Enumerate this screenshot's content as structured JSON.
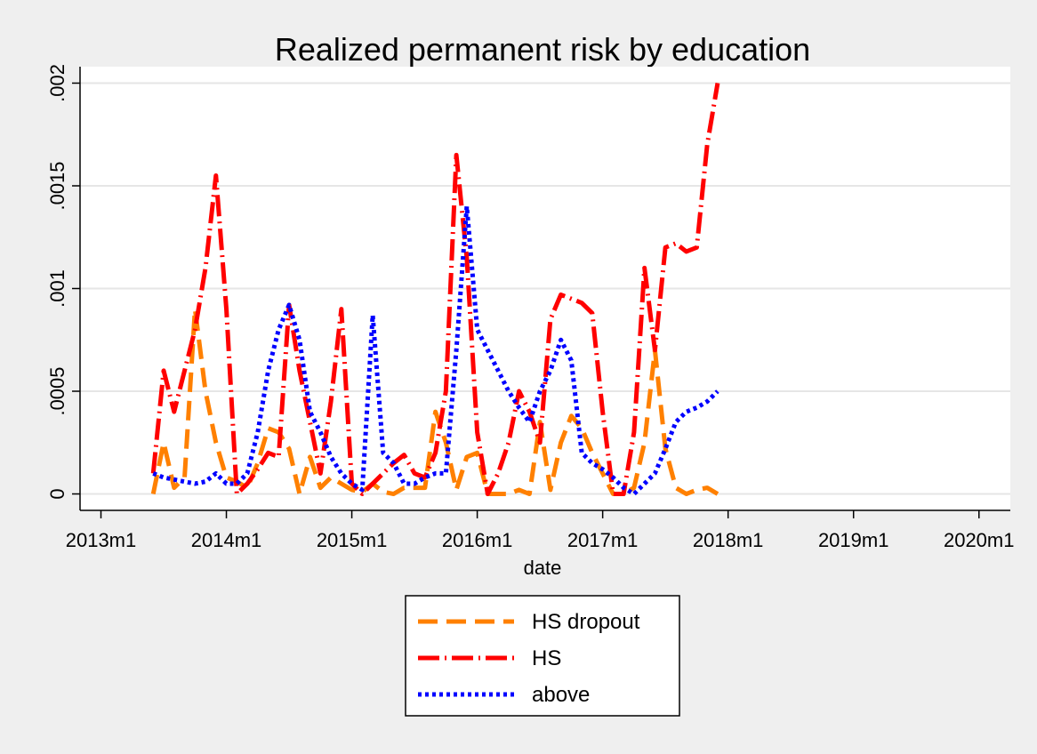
{
  "chart_data": {
    "type": "line",
    "title": "Realized permanent risk by education",
    "xlabel": "date",
    "ylabel": "",
    "xlim": [
      "2012m11",
      "2020m4"
    ],
    "ylim": [
      -8e-05,
      0.00208
    ],
    "x_ticks": [
      "2013m1",
      "2014m1",
      "2015m1",
      "2016m1",
      "2017m1",
      "2018m1",
      "2019m1",
      "2020m1"
    ],
    "y_ticks": [
      {
        "value": 0,
        "label": "0"
      },
      {
        "value": 0.0005,
        "label": ".0005"
      },
      {
        "value": 0.001,
        "label": ".001"
      },
      {
        "value": 0.0015,
        "label": ".0015"
      },
      {
        "value": 0.002,
        "label": ".002"
      }
    ],
    "grid": true,
    "legend_position": "bottom",
    "series": [
      {
        "name": "HS dropout",
        "color": "#ff8000",
        "style": "dash",
        "points": [
          [
            "2013m6",
            0.0
          ],
          [
            "2013m7",
            0.00025
          ],
          [
            "2013m8",
            3e-05
          ],
          [
            "2013m9",
            8e-05
          ],
          [
            "2013m10",
            0.0009
          ],
          [
            "2013m11",
            0.0005
          ],
          [
            "2013m12",
            0.00025
          ],
          [
            "2014m1",
            8e-05
          ],
          [
            "2014m2",
            6e-05
          ],
          [
            "2014m3",
            3e-05
          ],
          [
            "2014m4",
            0.00015
          ],
          [
            "2014m5",
            0.00032
          ],
          [
            "2014m6",
            0.0003
          ],
          [
            "2014m7",
            0.00022
          ],
          [
            "2014m8",
            0.0
          ],
          [
            "2014m9",
            0.00018
          ],
          [
            "2014m10",
            3e-05
          ],
          [
            "2014m11",
            8e-05
          ],
          [
            "2014m12",
            5e-05
          ],
          [
            "2015m1",
            2e-05
          ],
          [
            "2015m2",
            1e-05
          ],
          [
            "2015m3",
            5e-05
          ],
          [
            "2015m4",
            1e-05
          ],
          [
            "2015m5",
            0.0
          ],
          [
            "2015m6",
            3e-05
          ],
          [
            "2015m7",
            3e-05
          ],
          [
            "2015m8",
            3e-05
          ],
          [
            "2015m9",
            0.0004
          ],
          [
            "2015m10",
            0.00025
          ],
          [
            "2015m11",
            2e-05
          ],
          [
            "2015m12",
            0.00018
          ],
          [
            "2016m1",
            0.0002
          ],
          [
            "2016m2",
            0.0
          ],
          [
            "2016m3",
            0.0
          ],
          [
            "2016m4",
            0.0
          ],
          [
            "2016m5",
            2e-05
          ],
          [
            "2016m6",
            0.0
          ],
          [
            "2016m7",
            0.00035
          ],
          [
            "2016m8",
            2e-05
          ],
          [
            "2016m9",
            0.00025
          ],
          [
            "2016m10",
            0.00038
          ],
          [
            "2016m11",
            0.00032
          ],
          [
            "2016m12",
            0.0002
          ],
          [
            "2017m1",
            0.0001
          ],
          [
            "2017m2",
            0.0
          ],
          [
            "2017m3",
            0.0
          ],
          [
            "2017m4",
            3e-05
          ],
          [
            "2017m5",
            0.00025
          ],
          [
            "2017m6",
            0.0007
          ],
          [
            "2017m7",
            0.00022
          ],
          [
            "2017m8",
            3e-05
          ],
          [
            "2017m9",
            0.0
          ],
          [
            "2017m10",
            2e-05
          ],
          [
            "2017m11",
            3e-05
          ],
          [
            "2017m12",
            0.0
          ]
        ]
      },
      {
        "name": "HS",
        "color": "#ff0000",
        "style": "dashdot",
        "points": [
          [
            "2013m6",
            0.0001
          ],
          [
            "2013m7",
            0.0006
          ],
          [
            "2013m8",
            0.0004
          ],
          [
            "2013m9",
            0.0006
          ],
          [
            "2013m10",
            0.0008
          ],
          [
            "2013m11",
            0.0011
          ],
          [
            "2013m12",
            0.00155
          ],
          [
            "2014m1",
            0.0009
          ],
          [
            "2014m2",
            0.0
          ],
          [
            "2014m3",
            5e-05
          ],
          [
            "2014m4",
            0.00012
          ],
          [
            "2014m5",
            0.0002
          ],
          [
            "2014m6",
            0.00018
          ],
          [
            "2014m7",
            0.00092
          ],
          [
            "2014m8",
            0.0006
          ],
          [
            "2014m9",
            0.00035
          ],
          [
            "2014m10",
            0.0001
          ],
          [
            "2014m11",
            0.00045
          ],
          [
            "2014m12",
            0.0009
          ],
          [
            "2015m1",
            5e-05
          ],
          [
            "2015m2",
            0.0
          ],
          [
            "2015m3",
            5e-05
          ],
          [
            "2015m4",
            0.0001
          ],
          [
            "2015m5",
            0.00015
          ],
          [
            "2015m6",
            0.00019
          ],
          [
            "2015m7",
            0.0001
          ],
          [
            "2015m8",
            8e-05
          ],
          [
            "2015m9",
            0.0002
          ],
          [
            "2015m10",
            0.0005
          ],
          [
            "2015m11",
            0.00165
          ],
          [
            "2015m12",
            0.00115
          ],
          [
            "2016m1",
            0.0003
          ],
          [
            "2016m2",
            0.0
          ],
          [
            "2016m3",
            0.0001
          ],
          [
            "2016m4",
            0.00025
          ],
          [
            "2016m5",
            0.0005
          ],
          [
            "2016m6",
            0.0004
          ],
          [
            "2016m7",
            0.00025
          ],
          [
            "2016m8",
            0.00085
          ],
          [
            "2016m9",
            0.00097
          ],
          [
            "2016m10",
            0.00095
          ],
          [
            "2016m11",
            0.00093
          ],
          [
            "2016m12",
            0.00088
          ],
          [
            "2017m1",
            0.0004
          ],
          [
            "2017m2",
            0.0
          ],
          [
            "2017m3",
            0.0
          ],
          [
            "2017m4",
            0.0003
          ],
          [
            "2017m5",
            0.0011
          ],
          [
            "2017m6",
            0.0007
          ],
          [
            "2017m7",
            0.0012
          ],
          [
            "2017m8",
            0.00122
          ],
          [
            "2017m9",
            0.00118
          ],
          [
            "2017m10",
            0.0012
          ],
          [
            "2017m11",
            0.0017
          ],
          [
            "2017m12",
            0.002
          ]
        ]
      },
      {
        "name": "above",
        "color": "#0000ff",
        "style": "dot",
        "points": [
          [
            "2013m6",
            0.0001
          ],
          [
            "2013m7",
            8e-05
          ],
          [
            "2013m8",
            7e-05
          ],
          [
            "2013m9",
            6e-05
          ],
          [
            "2013m10",
            5e-05
          ],
          [
            "2013m11",
            6e-05
          ],
          [
            "2013m12",
            0.0001
          ],
          [
            "2014m1",
            5e-05
          ],
          [
            "2014m2",
            5e-05
          ],
          [
            "2014m3",
            0.0001
          ],
          [
            "2014m4",
            0.0003
          ],
          [
            "2014m5",
            0.0006
          ],
          [
            "2014m6",
            0.0008
          ],
          [
            "2014m7",
            0.00092
          ],
          [
            "2014m8",
            0.00075
          ],
          [
            "2014m9",
            0.0004
          ],
          [
            "2014m10",
            0.0003
          ],
          [
            "2014m11",
            0.00018
          ],
          [
            "2014m12",
            0.0001
          ],
          [
            "2015m1",
            5e-05
          ],
          [
            "2015m2",
            2e-05
          ],
          [
            "2015m3",
            0.00087
          ],
          [
            "2015m4",
            0.0002
          ],
          [
            "2015m5",
            0.00015
          ],
          [
            "2015m6",
            5e-05
          ],
          [
            "2015m7",
            5e-05
          ],
          [
            "2015m8",
            8e-05
          ],
          [
            "2015m9",
            0.0001
          ],
          [
            "2015m10",
            0.0001
          ],
          [
            "2015m11",
            0.0007
          ],
          [
            "2015m12",
            0.0014
          ],
          [
            "2016m1",
            0.0008
          ],
          [
            "2016m2",
            0.0007
          ],
          [
            "2016m3",
            0.0006
          ],
          [
            "2016m4",
            0.0005
          ],
          [
            "2016m5",
            0.00042
          ],
          [
            "2016m6",
            0.00035
          ],
          [
            "2016m7",
            0.0005
          ],
          [
            "2016m8",
            0.0006
          ],
          [
            "2016m9",
            0.00075
          ],
          [
            "2016m10",
            0.00065
          ],
          [
            "2016m11",
            0.0002
          ],
          [
            "2016m12",
            0.00015
          ],
          [
            "2017m1",
            0.00012
          ],
          [
            "2017m2",
            8e-05
          ],
          [
            "2017m3",
            3e-05
          ],
          [
            "2017m4",
            0.0
          ],
          [
            "2017m5",
            5e-05
          ],
          [
            "2017m6",
            0.0001
          ],
          [
            "2017m7",
            0.00022
          ],
          [
            "2017m8",
            0.00035
          ],
          [
            "2017m9",
            0.0004
          ],
          [
            "2017m10",
            0.00042
          ],
          [
            "2017m11",
            0.00045
          ],
          [
            "2017m12",
            0.0005
          ]
        ]
      }
    ]
  }
}
